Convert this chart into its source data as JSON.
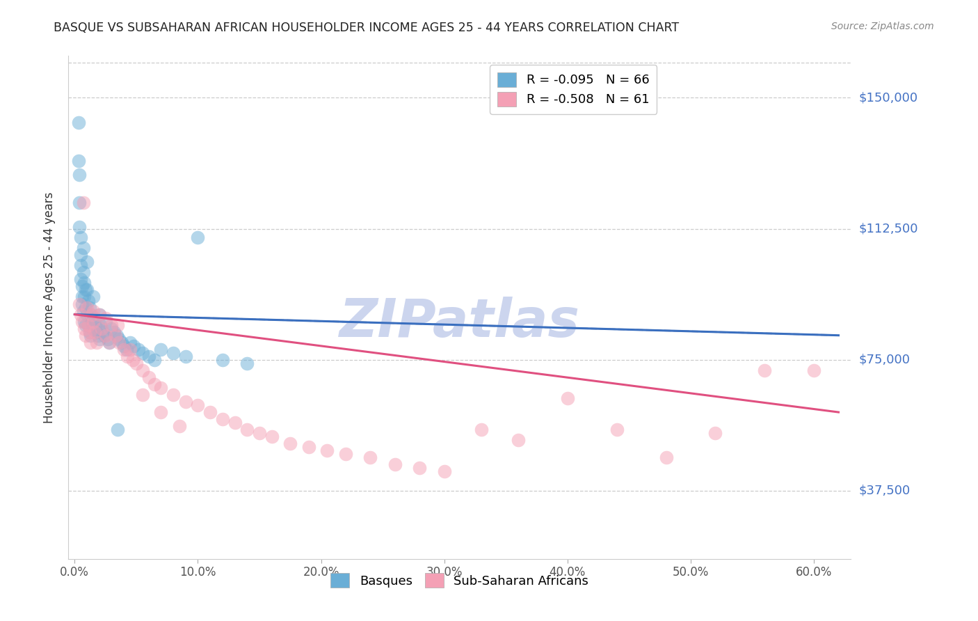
{
  "title": "BASQUE VS SUBSAHARAN AFRICAN HOUSEHOLDER INCOME AGES 25 - 44 YEARS CORRELATION CHART",
  "source": "Source: ZipAtlas.com",
  "ylabel": "Householder Income Ages 25 - 44 years",
  "xlabel_ticks": [
    "0.0%",
    "10.0%",
    "20.0%",
    "30.0%",
    "40.0%",
    "50.0%",
    "60.0%"
  ],
  "xlabel_vals": [
    0.0,
    0.1,
    0.2,
    0.3,
    0.4,
    0.5,
    0.6
  ],
  "ytick_labels": [
    "$37,500",
    "$75,000",
    "$112,500",
    "$150,000"
  ],
  "ytick_vals": [
    37500,
    75000,
    112500,
    150000
  ],
  "ymin": 18000,
  "ymax": 162000,
  "xmin": -0.005,
  "xmax": 0.63,
  "legend_blue_r": "R = -0.095",
  "legend_blue_n": "N = 66",
  "legend_pink_r": "R = -0.508",
  "legend_pink_n": "N = 61",
  "legend_label_blue": "Basques",
  "legend_label_pink": "Sub-Saharan Africans",
  "watermark": "ZIPatlas",
  "blue_scatter_x": [
    0.003,
    0.003,
    0.004,
    0.004,
    0.004,
    0.005,
    0.005,
    0.005,
    0.005,
    0.006,
    0.006,
    0.006,
    0.007,
    0.007,
    0.007,
    0.008,
    0.008,
    0.008,
    0.009,
    0.009,
    0.009,
    0.01,
    0.01,
    0.01,
    0.011,
    0.011,
    0.012,
    0.012,
    0.013,
    0.013,
    0.014,
    0.015,
    0.015,
    0.016,
    0.017,
    0.018,
    0.019,
    0.02,
    0.02,
    0.021,
    0.022,
    0.023,
    0.024,
    0.025,
    0.027,
    0.028,
    0.03,
    0.032,
    0.034,
    0.036,
    0.038,
    0.04,
    0.042,
    0.045,
    0.048,
    0.052,
    0.055,
    0.06,
    0.065,
    0.07,
    0.08,
    0.09,
    0.1,
    0.12,
    0.14,
    0.035
  ],
  "blue_scatter_y": [
    143000,
    132000,
    128000,
    120000,
    113000,
    110000,
    105000,
    102000,
    98000,
    96000,
    93000,
    91000,
    107000,
    100000,
    89000,
    97000,
    93000,
    86000,
    95000,
    90000,
    85000,
    103000,
    95000,
    88000,
    92000,
    85000,
    90000,
    83000,
    88000,
    82000,
    86000,
    93000,
    84000,
    87000,
    85000,
    83000,
    82000,
    88000,
    81000,
    85000,
    84000,
    83000,
    82000,
    86000,
    81000,
    80000,
    84000,
    83000,
    82000,
    81000,
    80000,
    79000,
    78000,
    80000,
    79000,
    78000,
    77000,
    76000,
    75000,
    78000,
    77000,
    76000,
    110000,
    75000,
    74000,
    55000
  ],
  "pink_scatter_x": [
    0.004,
    0.005,
    0.006,
    0.007,
    0.008,
    0.009,
    0.01,
    0.011,
    0.012,
    0.013,
    0.014,
    0.015,
    0.016,
    0.018,
    0.02,
    0.022,
    0.025,
    0.028,
    0.03,
    0.033,
    0.036,
    0.04,
    0.043,
    0.047,
    0.05,
    0.055,
    0.06,
    0.065,
    0.07,
    0.08,
    0.09,
    0.1,
    0.11,
    0.12,
    0.13,
    0.14,
    0.15,
    0.16,
    0.175,
    0.19,
    0.205,
    0.22,
    0.24,
    0.26,
    0.28,
    0.3,
    0.33,
    0.36,
    0.4,
    0.44,
    0.48,
    0.52,
    0.56,
    0.6,
    0.015,
    0.025,
    0.035,
    0.045,
    0.055,
    0.07,
    0.085
  ],
  "pink_scatter_y": [
    91000,
    88000,
    86000,
    120000,
    84000,
    82000,
    90000,
    85000,
    83000,
    80000,
    88000,
    86000,
    83000,
    80000,
    88000,
    84000,
    82000,
    80000,
    85000,
    82000,
    80000,
    78000,
    76000,
    75000,
    74000,
    72000,
    70000,
    68000,
    67000,
    65000,
    63000,
    62000,
    60000,
    58000,
    57000,
    55000,
    54000,
    53000,
    51000,
    50000,
    49000,
    48000,
    47000,
    45000,
    44000,
    43000,
    55000,
    52000,
    64000,
    55000,
    47000,
    54000,
    72000,
    72000,
    89000,
    87000,
    85000,
    78000,
    65000,
    60000,
    56000
  ],
  "blue_line_x": [
    0.0,
    0.62
  ],
  "blue_line_y": [
    88000,
    82000
  ],
  "pink_line_x": [
    0.0,
    0.62
  ],
  "pink_line_y": [
    88000,
    60000
  ],
  "dot_color_blue": "#6aaed6",
  "dot_color_pink": "#f4a0b5",
  "line_color_blue": "#3a6fbf",
  "line_color_pink": "#e05080",
  "dash_color": "#9999bb",
  "title_color": "#222222",
  "axis_label_color": "#333333",
  "ytick_color": "#4472c4",
  "source_color": "#888888",
  "watermark_color": "#ccd5ee",
  "grid_color": "#cccccc",
  "background_color": "#ffffff"
}
